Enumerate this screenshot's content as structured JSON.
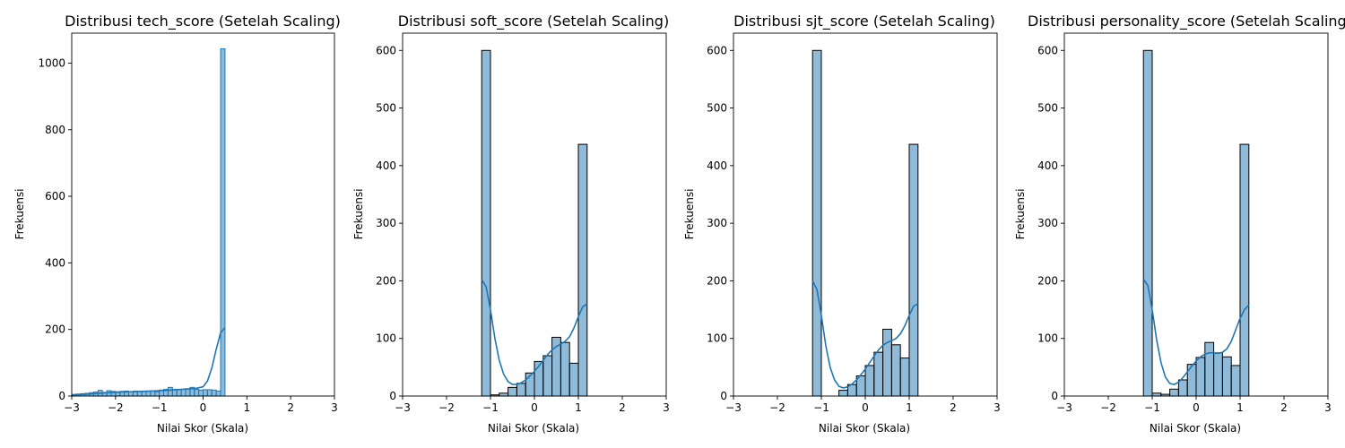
{
  "chart_data": [
    {
      "type": "histogram",
      "title": "Distribusi tech_score (Setelah Scaling)",
      "xlabel": "Nilai Skor (Skala)",
      "ylabel": "Frekuensi",
      "xlim": [
        -3,
        3
      ],
      "ylim": [
        0,
        1090
      ],
      "xticks": [
        -3,
        -2,
        -1,
        0,
        1,
        2,
        3
      ],
      "yticks": [
        0,
        200,
        400,
        600,
        800,
        1000
      ],
      "bar_color": "#1f77b4",
      "bar_alpha": 0.5,
      "bar_edge": "#1f77b4",
      "kde_color": "#1f77b4",
      "bins": [
        {
          "x0": -3.0,
          "x1": -2.9,
          "count": 5
        },
        {
          "x0": -2.9,
          "x1": -2.8,
          "count": 6
        },
        {
          "x0": -2.8,
          "x1": -2.7,
          "count": 7
        },
        {
          "x0": -2.7,
          "x1": -2.6,
          "count": 8
        },
        {
          "x0": -2.6,
          "x1": -2.5,
          "count": 10
        },
        {
          "x0": -2.5,
          "x1": -2.4,
          "count": 12
        },
        {
          "x0": -2.4,
          "x1": -2.3,
          "count": 17
        },
        {
          "x0": -2.3,
          "x1": -2.2,
          "count": 11
        },
        {
          "x0": -2.2,
          "x1": -2.1,
          "count": 16
        },
        {
          "x0": -2.1,
          "x1": -2.0,
          "count": 14
        },
        {
          "x0": -2.0,
          "x1": -1.9,
          "count": 13
        },
        {
          "x0": -1.9,
          "x1": -1.8,
          "count": 14
        },
        {
          "x0": -1.8,
          "x1": -1.7,
          "count": 15
        },
        {
          "x0": -1.7,
          "x1": -1.6,
          "count": 13
        },
        {
          "x0": -1.6,
          "x1": -1.5,
          "count": 15
        },
        {
          "x0": -1.5,
          "x1": -1.4,
          "count": 14
        },
        {
          "x0": -1.4,
          "x1": -1.3,
          "count": 15
        },
        {
          "x0": -1.3,
          "x1": -1.2,
          "count": 14
        },
        {
          "x0": -1.2,
          "x1": -1.1,
          "count": 15
        },
        {
          "x0": -1.1,
          "x1": -1.0,
          "count": 13
        },
        {
          "x0": -1.0,
          "x1": -0.9,
          "count": 18
        },
        {
          "x0": -0.9,
          "x1": -0.8,
          "count": 20
        },
        {
          "x0": -0.8,
          "x1": -0.7,
          "count": 26
        },
        {
          "x0": -0.7,
          "x1": -0.6,
          "count": 20
        },
        {
          "x0": -0.6,
          "x1": -0.5,
          "count": 19
        },
        {
          "x0": -0.5,
          "x1": -0.4,
          "count": 20
        },
        {
          "x0": -0.4,
          "x1": -0.3,
          "count": 22
        },
        {
          "x0": -0.3,
          "x1": -0.2,
          "count": 26
        },
        {
          "x0": -0.2,
          "x1": -0.1,
          "count": 20
        },
        {
          "x0": -0.1,
          "x1": 0.0,
          "count": 18
        },
        {
          "x0": 0.0,
          "x1": 0.1,
          "count": 19
        },
        {
          "x0": 0.1,
          "x1": 0.2,
          "count": 19
        },
        {
          "x0": 0.2,
          "x1": 0.3,
          "count": 18
        },
        {
          "x0": 0.3,
          "x1": 0.4,
          "count": 15
        },
        {
          "x0": 0.4,
          "x1": 0.5,
          "count": 1043
        }
      ],
      "kde": {
        "x": [
          -3.0,
          -2.6,
          -2.2,
          -1.8,
          -1.4,
          -1.0,
          -0.7,
          -0.4,
          -0.2,
          0.0,
          0.1,
          0.2,
          0.3,
          0.4,
          0.5
        ],
        "y": [
          3,
          6,
          10,
          12,
          14,
          16,
          18,
          21,
          22,
          28,
          45,
          85,
          140,
          190,
          205
        ]
      }
    },
    {
      "type": "histogram",
      "title": "Distribusi soft_score (Setelah Scaling)",
      "xlabel": "Nilai Skor (Skala)",
      "ylabel": "Frekuensi",
      "xlim": [
        -3,
        3
      ],
      "ylim": [
        0,
        630
      ],
      "xticks": [
        -3,
        -2,
        -1,
        0,
        1,
        2,
        3
      ],
      "yticks": [
        0,
        100,
        200,
        300,
        400,
        500,
        600
      ],
      "bar_color": "#1f77b4",
      "bar_alpha": 0.5,
      "bar_edge": "#000000",
      "kde_color": "#1f77b4",
      "bins": [
        {
          "x0": -1.2,
          "x1": -1.0,
          "count": 600
        },
        {
          "x0": -1.0,
          "x1": -0.8,
          "count": 2
        },
        {
          "x0": -0.8,
          "x1": -0.6,
          "count": 5
        },
        {
          "x0": -0.6,
          "x1": -0.4,
          "count": 15
        },
        {
          "x0": -0.4,
          "x1": -0.2,
          "count": 22
        },
        {
          "x0": -0.2,
          "x1": 0.0,
          "count": 40
        },
        {
          "x0": 0.0,
          "x1": 0.2,
          "count": 60
        },
        {
          "x0": 0.2,
          "x1": 0.4,
          "count": 70
        },
        {
          "x0": 0.4,
          "x1": 0.6,
          "count": 102
        },
        {
          "x0": 0.6,
          "x1": 0.8,
          "count": 93
        },
        {
          "x0": 0.8,
          "x1": 1.0,
          "count": 57
        },
        {
          "x0": 1.0,
          "x1": 1.2,
          "count": 437
        }
      ],
      "kde": {
        "x": [
          -1.2,
          -1.1,
          -1.0,
          -0.9,
          -0.8,
          -0.7,
          -0.6,
          -0.5,
          -0.4,
          -0.3,
          -0.2,
          -0.1,
          0.0,
          0.1,
          0.2,
          0.3,
          0.4,
          0.5,
          0.6,
          0.7,
          0.8,
          0.9,
          1.0,
          1.1,
          1.2
        ],
        "y": [
          202,
          190,
          150,
          100,
          62,
          38,
          25,
          20,
          20,
          23,
          28,
          35,
          43,
          52,
          62,
          72,
          80,
          86,
          90,
          95,
          103,
          118,
          138,
          155,
          160
        ]
      }
    },
    {
      "type": "histogram",
      "title": "Distribusi sjt_score (Setelah Scaling)",
      "xlabel": "Nilai Skor (Skala)",
      "ylabel": "Frekuensi",
      "xlim": [
        -3,
        3
      ],
      "ylim": [
        0,
        630
      ],
      "xticks": [
        -3,
        -2,
        -1,
        0,
        1,
        2,
        3
      ],
      "yticks": [
        0,
        100,
        200,
        300,
        400,
        500,
        600
      ],
      "bar_color": "#1f77b4",
      "bar_alpha": 0.5,
      "bar_edge": "#000000",
      "kde_color": "#1f77b4",
      "bins": [
        {
          "x0": -1.2,
          "x1": -1.0,
          "count": 600
        },
        {
          "x0": -0.6,
          "x1": -0.4,
          "count": 10
        },
        {
          "x0": -0.4,
          "x1": -0.2,
          "count": 20
        },
        {
          "x0": -0.2,
          "x1": 0.0,
          "count": 35
        },
        {
          "x0": 0.0,
          "x1": 0.2,
          "count": 53
        },
        {
          "x0": 0.2,
          "x1": 0.4,
          "count": 76
        },
        {
          "x0": 0.4,
          "x1": 0.6,
          "count": 116
        },
        {
          "x0": 0.6,
          "x1": 0.8,
          "count": 89
        },
        {
          "x0": 0.8,
          "x1": 1.0,
          "count": 66
        },
        {
          "x0": 1.0,
          "x1": 1.2,
          "count": 437
        }
      ],
      "kde": {
        "x": [
          -1.2,
          -1.1,
          -1.0,
          -0.9,
          -0.8,
          -0.7,
          -0.6,
          -0.5,
          -0.4,
          -0.3,
          -0.2,
          -0.1,
          0.0,
          0.1,
          0.2,
          0.3,
          0.4,
          0.5,
          0.6,
          0.7,
          0.8,
          0.9,
          1.0,
          1.1,
          1.2
        ],
        "y": [
          200,
          185,
          140,
          88,
          50,
          28,
          17,
          14,
          16,
          21,
          28,
          37,
          47,
          58,
          69,
          80,
          88,
          93,
          96,
          100,
          108,
          122,
          140,
          156,
          160
        ]
      }
    },
    {
      "type": "histogram",
      "title": "Distribusi personality_score (Setelah Scaling)",
      "xlabel": "Nilai Skor (Skala)",
      "ylabel": "Frekuensi",
      "xlim": [
        -3,
        3
      ],
      "ylim": [
        0,
        630
      ],
      "xticks": [
        -3,
        -2,
        -1,
        0,
        1,
        2,
        3
      ],
      "yticks": [
        0,
        100,
        200,
        300,
        400,
        500,
        600
      ],
      "bar_color": "#1f77b4",
      "bar_alpha": 0.5,
      "bar_edge": "#000000",
      "kde_color": "#1f77b4",
      "bins": [
        {
          "x0": -1.2,
          "x1": -1.0,
          "count": 600
        },
        {
          "x0": -1.0,
          "x1": -0.8,
          "count": 5
        },
        {
          "x0": -0.8,
          "x1": -0.6,
          "count": 3
        },
        {
          "x0": -0.6,
          "x1": -0.4,
          "count": 12
        },
        {
          "x0": -0.4,
          "x1": -0.2,
          "count": 28
        },
        {
          "x0": -0.2,
          "x1": 0.0,
          "count": 55
        },
        {
          "x0": 0.0,
          "x1": 0.2,
          "count": 67
        },
        {
          "x0": 0.2,
          "x1": 0.4,
          "count": 93
        },
        {
          "x0": 0.4,
          "x1": 0.6,
          "count": 75
        },
        {
          "x0": 0.6,
          "x1": 0.8,
          "count": 68
        },
        {
          "x0": 0.8,
          "x1": 1.0,
          "count": 53
        },
        {
          "x0": 1.0,
          "x1": 1.2,
          "count": 437
        }
      ],
      "kde": {
        "x": [
          -1.2,
          -1.1,
          -1.0,
          -0.9,
          -0.8,
          -0.7,
          -0.6,
          -0.5,
          -0.4,
          -0.3,
          -0.2,
          -0.1,
          0.0,
          0.1,
          0.2,
          0.3,
          0.4,
          0.5,
          0.6,
          0.7,
          0.8,
          0.9,
          1.0,
          1.1,
          1.2
        ],
        "y": [
          203,
          192,
          150,
          98,
          58,
          33,
          22,
          20,
          24,
          32,
          42,
          52,
          61,
          68,
          73,
          75,
          75,
          74,
          76,
          82,
          95,
          115,
          135,
          150,
          158
        ]
      }
    }
  ]
}
